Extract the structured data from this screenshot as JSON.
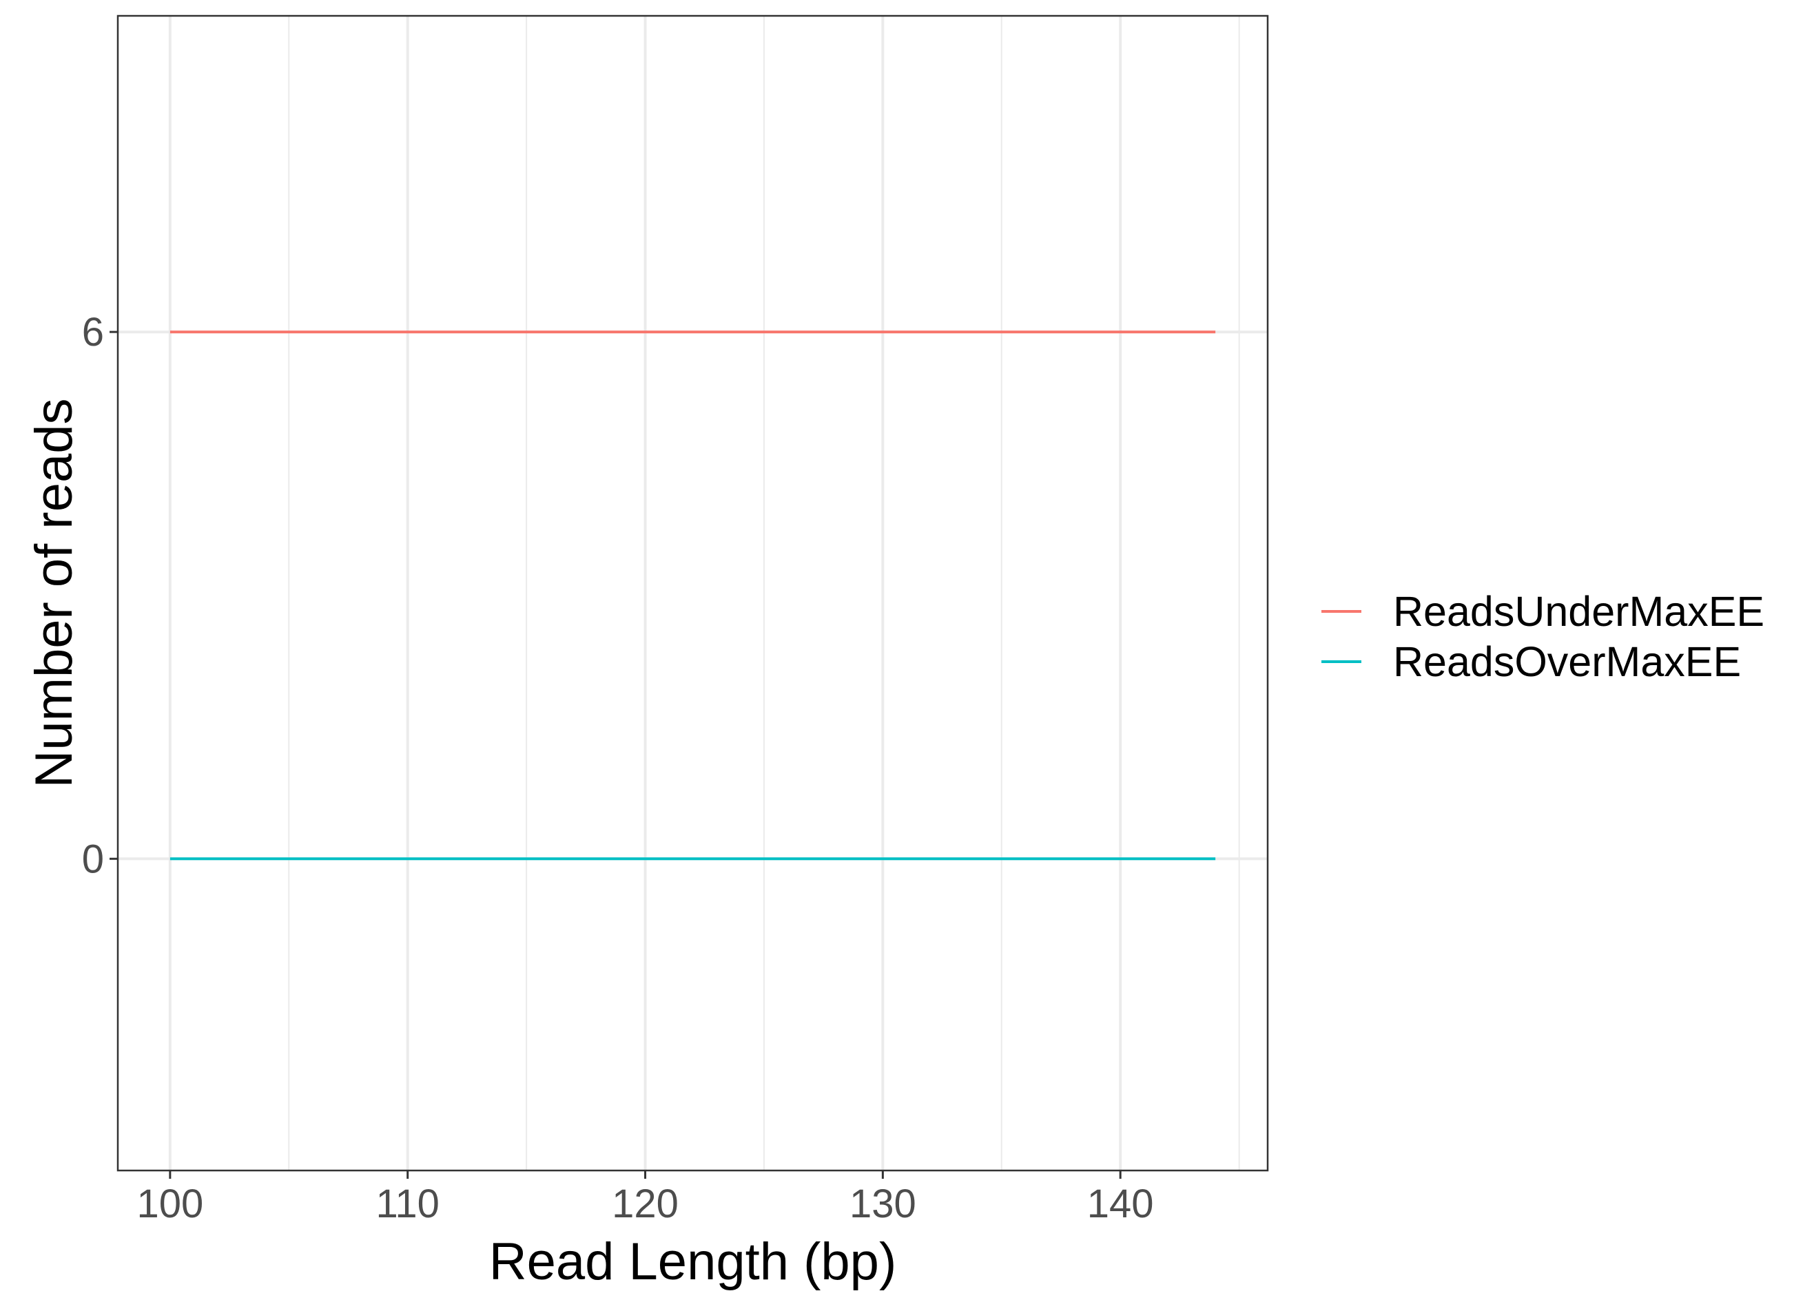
{
  "chart_data": {
    "type": "line",
    "xlabel": "Read Length (bp)",
    "ylabel": "Number of reads",
    "xlim": [
      97.8,
      146.2
    ],
    "ylim": [
      -3.55,
      9.6
    ],
    "x_ticks": [
      100,
      110,
      120,
      130,
      140
    ],
    "x_tick_labels": [
      "100",
      "110",
      "120",
      "130",
      "140"
    ],
    "x_minor_ticks": [
      105,
      115,
      125,
      135,
      145
    ],
    "y_ticks": [
      0,
      6
    ],
    "y_tick_labels": [
      "0",
      "6"
    ],
    "grid": true,
    "legend_position": "right",
    "series": [
      {
        "name": "ReadsUnderMaxEE",
        "color": "#F8766D",
        "x": [
          100,
          144
        ],
        "y": [
          6,
          6
        ]
      },
      {
        "name": "ReadsOverMaxEE",
        "color": "#00BFC4",
        "x": [
          100,
          144
        ],
        "y": [
          0,
          0
        ]
      }
    ]
  }
}
